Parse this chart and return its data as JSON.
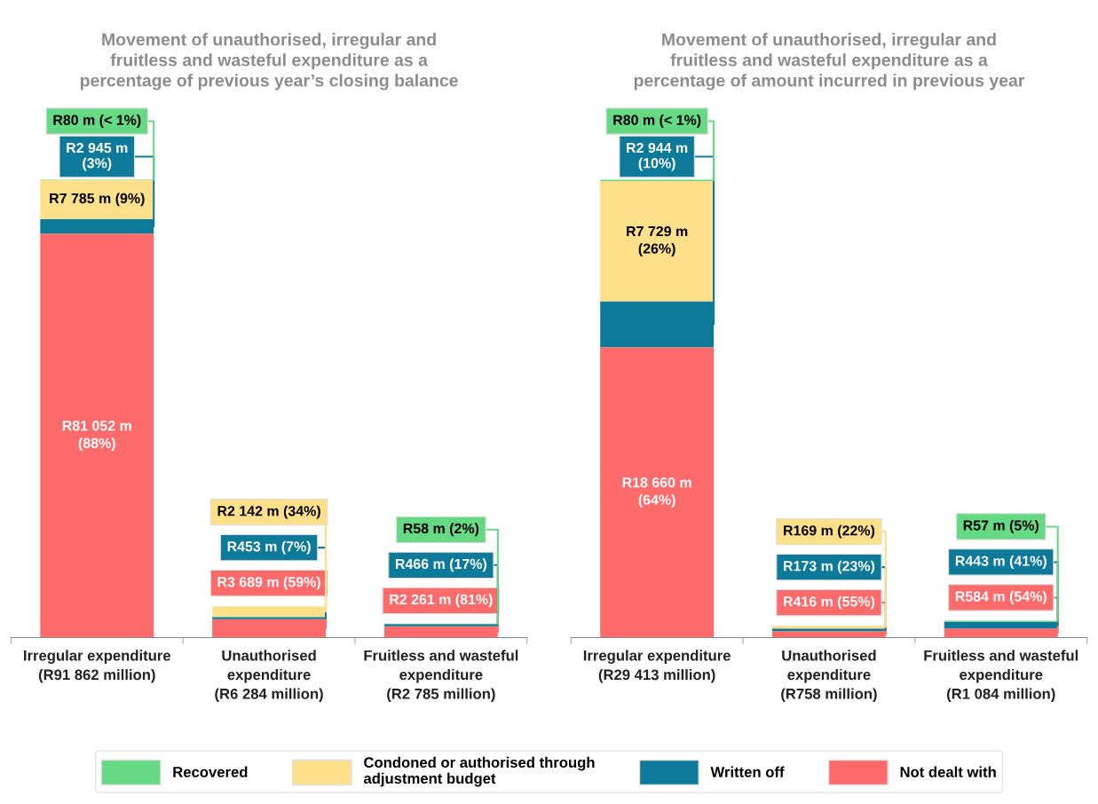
{
  "chart_data": [
    {
      "type": "bar",
      "stacked": true,
      "title": "Movement of unauthorised, irregular and\nfruitless and wasteful expenditure as a\npercentage of previous year’s closing balance",
      "legend": "bottom",
      "categories": [
        "Irregular expenditure\n(R91 862 million)",
        "Unauthorised\nexpenditure\n(R6 284 million)",
        "Fruitless and wasteful\nexpenditure\n(R2 785 million)"
      ],
      "series": [
        {
          "name": "Not dealt with",
          "color": "#ff6b6b",
          "values": [
            81052,
            3689,
            2261
          ],
          "value_labels": [
            "R81 052 m\n(88%)",
            "R3 689 m (59%)",
            "R2 261 m (81%)"
          ]
        },
        {
          "name": "Written off",
          "color": "#0e7a99",
          "values": [
            2945,
            453,
            466
          ],
          "value_labels": [
            "R2 945 m\n(3%)",
            "R453 m (7%)",
            "R466 m (17%)"
          ]
        },
        {
          "name": "Condoned or authorised through\nadjustment budget",
          "color": "#ffe08a",
          "values": [
            7785,
            2142,
            null
          ],
          "value_labels": [
            "R7 785 m (9%)",
            "R2 142 m (34%)",
            null
          ]
        },
        {
          "name": "Recovered",
          "color": "#66d985",
          "values": [
            80,
            null,
            58
          ],
          "value_labels": [
            "R80 m (< 1%)",
            null,
            "R58 m (2%)"
          ]
        }
      ]
    },
    {
      "type": "bar",
      "stacked": true,
      "title": "Movement of unauthorised, irregular and\nfruitless and wasteful expenditure as a\npercentage of amount incurred in previous year",
      "categories": [
        "Irregular expenditure\n(R29 413 million)",
        "Unauthorised\nexpenditure\n(R758 million)",
        "Fruitless and wasteful\nexpenditure\n(R1 084 million)"
      ],
      "series": [
        {
          "color": "#ff6b6b",
          "values": [
            18660,
            416,
            584
          ],
          "value_labels": [
            "R18 660 m\n(64%)",
            "R416 m (55%)",
            "R584 m (54%)"
          ]
        },
        {
          "color": "#0e7a99",
          "values": [
            2944,
            173,
            443
          ],
          "value_labels": [
            "R2 944 m\n(10%)",
            "R173 m (23%)",
            "R443 m (41%)"
          ]
        },
        {
          "color": "#ffe08a",
          "values": [
            7729,
            169,
            null
          ],
          "value_labels": [
            "R7 729 m\n(26%)",
            "R169 m (22%)",
            null
          ]
        },
        {
          "color": "#66d985",
          "values": [
            80,
            null,
            57
          ],
          "value_labels": [
            "R80 m (< 1%)",
            null,
            "R57 m (5%)"
          ]
        }
      ]
    }
  ]
}
